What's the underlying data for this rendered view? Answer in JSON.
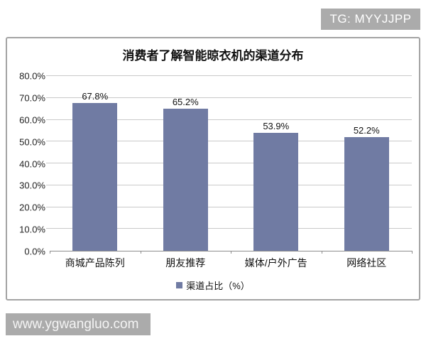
{
  "header": {
    "tg_badge": "TG: MYYJJPP"
  },
  "footer": {
    "watermark": "www.ygwangluo.com"
  },
  "colors": {
    "bar": "#707BA3",
    "badge_bg": "#ABABAB",
    "watermark_bg": "#ABABAB"
  },
  "chart_data": {
    "type": "bar",
    "title": "消费者了解智能晾衣机的渠道分布",
    "categories": [
      "商城产品陈列",
      "朋友推荐",
      "媒体/户外广告",
      "网络社区"
    ],
    "values": [
      67.8,
      65.2,
      53.9,
      52.2
    ],
    "value_labels": [
      "67.8%",
      "65.2%",
      "53.9%",
      "52.2%"
    ],
    "legend": "渠道占比（%）",
    "legend_position": "bottom",
    "xlabel": "",
    "ylabel": "",
    "ylim": [
      0,
      80
    ],
    "ytick_step": 10,
    "ytick_labels": [
      "0.0%",
      "10.0%",
      "20.0%",
      "30.0%",
      "40.0%",
      "50.0%",
      "60.0%",
      "70.0%",
      "80.0%"
    ],
    "grid": true,
    "bar_color": "#707BA3"
  }
}
